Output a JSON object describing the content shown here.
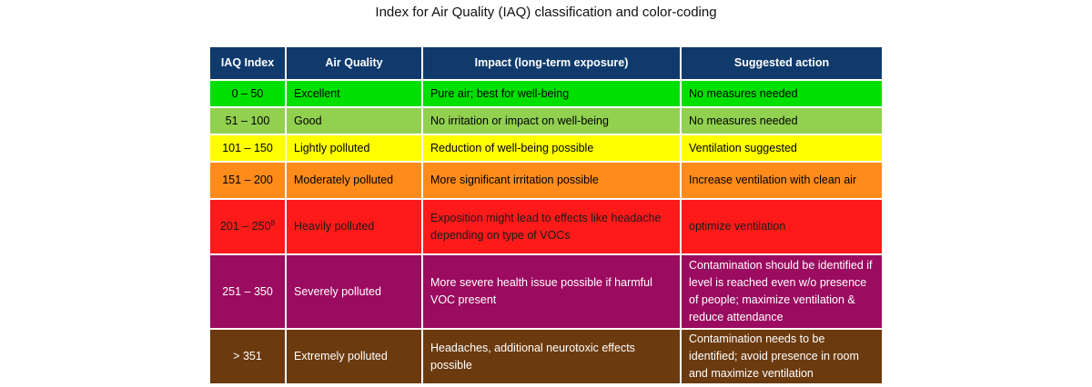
{
  "title": "Index for Air Quality (IAQ) classification and color-coding",
  "table": {
    "headers": [
      "IAQ Index",
      "Air Quality",
      "Impact (long-term exposure)",
      "Suggested action"
    ],
    "rows": [
      {
        "index": "0 – 50",
        "quality": "Excellent",
        "impact": "Pure air; best for well-being",
        "action": "No measures needed",
        "color": "#00e000",
        "text_color": "#000000"
      },
      {
        "index": "51 – 100",
        "quality": "Good",
        "impact": "No irritation or impact on well-being",
        "action": "No measures needed",
        "color": "#92d050",
        "text_color": "#000000"
      },
      {
        "index": "101 – 150",
        "quality": "Lightly polluted",
        "impact": "Reduction of well-being possible",
        "action": "Ventilation suggested",
        "color": "#ffff00",
        "text_color": "#000000"
      },
      {
        "index": "151 – 200",
        "quality": "Moderately polluted",
        "impact": "More significant irritation possible",
        "action": "Increase ventilation with clean air",
        "color": "#ff8c1a",
        "text_color": "#000000"
      },
      {
        "index": "201 – 250",
        "index_sup": "8",
        "quality": "Heavily polluted",
        "impact": "Exposition might lead to effects like headache depending on type of VOCs",
        "action": "optimize ventilation",
        "color": "#ff1a1a",
        "text_color": "#1a1a1a"
      },
      {
        "index": "251 – 350",
        "quality": "Severely polluted",
        "impact": "More severe health issue possible if harmful VOC present",
        "action": "Contamination should be identified if level is reached even w/o presence of people; maximize ventilation & reduce attendance",
        "color": "#9b0b5f",
        "text_color": "#ffffff"
      },
      {
        "index": "> 351",
        "quality": "Extremely polluted",
        "impact": "Headaches, additional neurotoxic effects possible",
        "action": "Contamination needs to be identified; avoid presence in room and maximize ventilation",
        "color": "#6b3a0f",
        "text_color": "#ffffff"
      }
    ]
  }
}
